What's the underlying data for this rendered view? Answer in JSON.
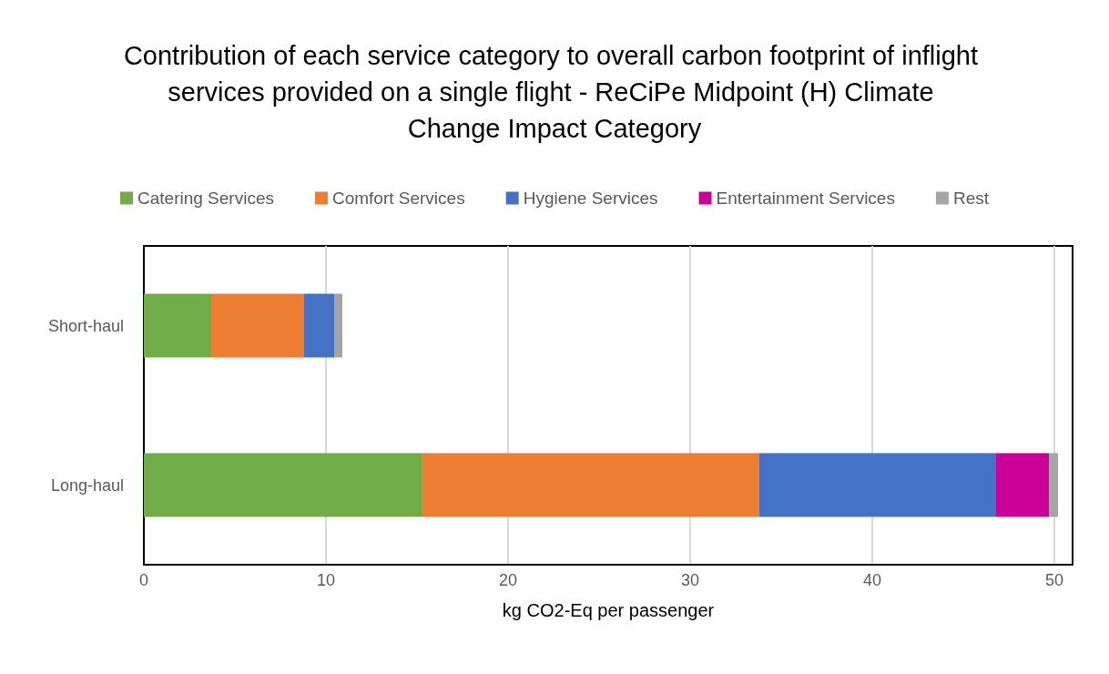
{
  "chart_data": {
    "type": "bar",
    "orientation": "horizontal",
    "stacked": true,
    "title": "Contribution of each service category to overall carbon footprint of inflight services provided on a single flight - ReCiPe Midpoint (H) Climate Change Impact Category",
    "xlabel": "kg CO2-Eq per passenger",
    "categories": [
      "Short-haul",
      "Long-haul"
    ],
    "series": [
      {
        "name": "Catering Services",
        "color": "#70ad47",
        "values": [
          3.7,
          15.25
        ]
      },
      {
        "name": "Comfort Services",
        "color": "#ed7d31",
        "values": [
          5.1,
          18.55
        ]
      },
      {
        "name": "Hygiene Services",
        "color": "#4472c4",
        "values": [
          1.65,
          13.0
        ]
      },
      {
        "name": "Entertainment Services",
        "color": "#cc0099",
        "values": [
          0,
          2.9
        ]
      },
      {
        "name": "Rest",
        "color": "#a5a5a5",
        "values": [
          0.45,
          0.5
        ]
      }
    ],
    "xlim": [
      0,
      51
    ],
    "xticks": [
      0,
      10,
      20,
      30,
      40,
      50
    ],
    "grid": "x",
    "legend": "top"
  }
}
